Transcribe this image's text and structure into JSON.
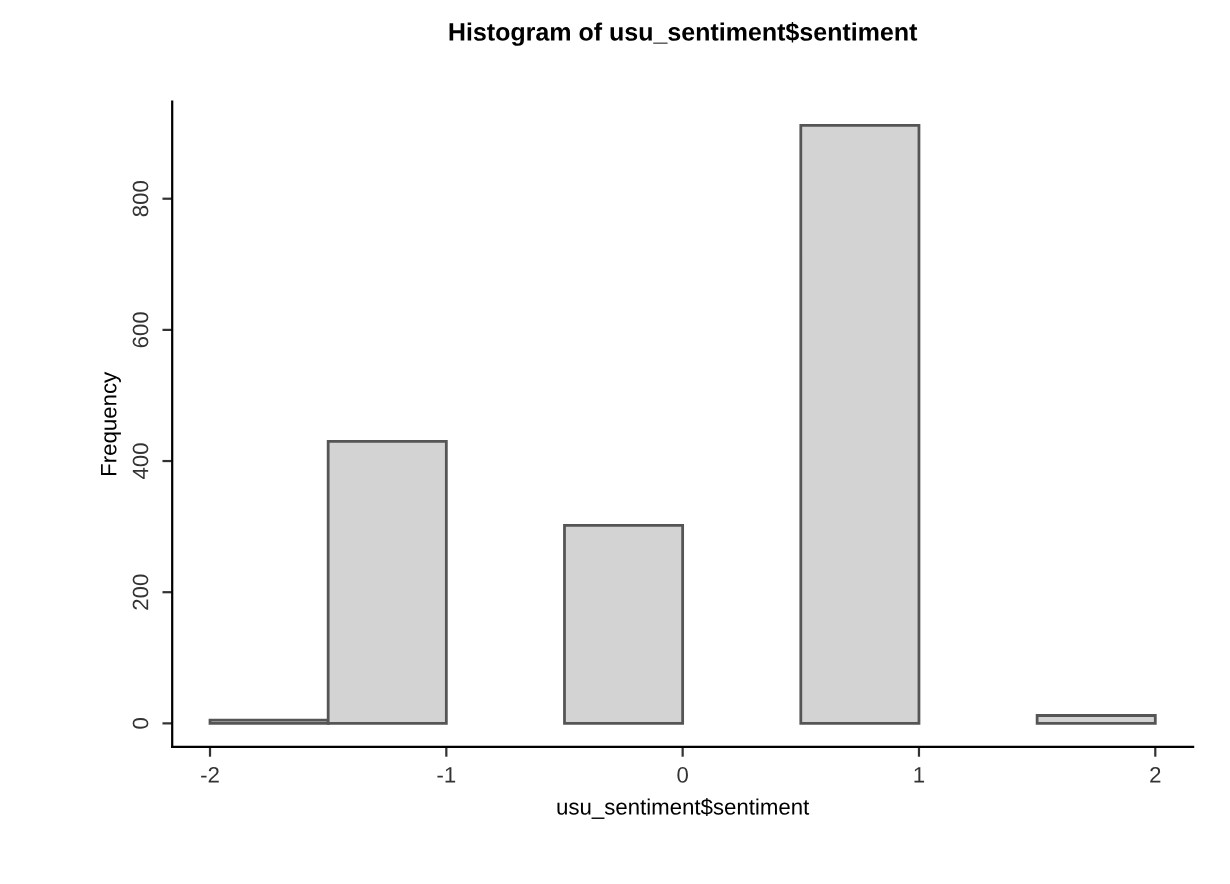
{
  "chart_data": {
    "type": "histogram",
    "title": "Histogram of usu_sentiment$sentiment",
    "xlabel": "usu_sentiment$sentiment",
    "ylabel": "Frequency",
    "bins": [
      -2,
      -1.5,
      -1,
      -0.5,
      0,
      0.5,
      1,
      1.5,
      2
    ],
    "values": [
      5,
      430,
      0,
      302,
      0,
      912,
      0,
      12
    ],
    "color": "#d3d3d3",
    "xlim": [
      -2.16,
      2.16
    ],
    "xticks": [
      -2,
      -1,
      0,
      1,
      2
    ],
    "ylim": [
      -36,
      948
    ],
    "yticks": [
      0,
      200,
      400,
      600,
      800
    ],
    "grid": false,
    "legend": false
  }
}
